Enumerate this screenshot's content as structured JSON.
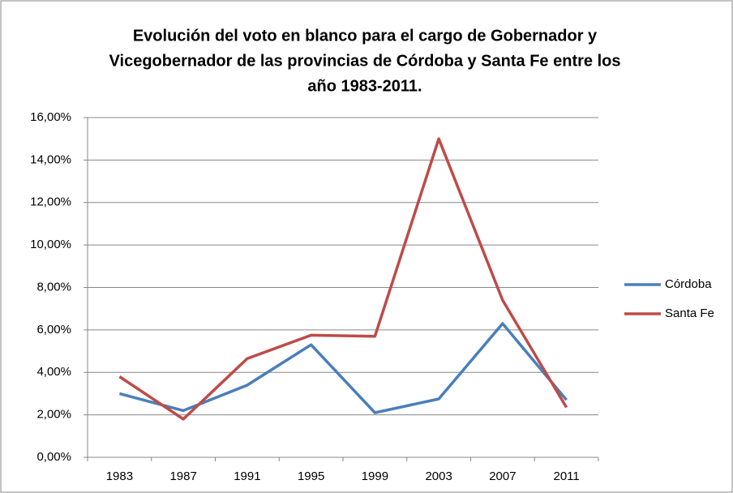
{
  "chart_data": {
    "type": "line",
    "title": [
      "Evolución del voto en blanco para el cargo de Gobernador y",
      "Vicegobernador de las provincias de Córdoba y Santa Fe entre los",
      "año 1983-2011."
    ],
    "categories": [
      "1983",
      "1987",
      "1991",
      "1995",
      "1999",
      "2003",
      "2007",
      "2011"
    ],
    "series": [
      {
        "name": "Córdoba",
        "color": "#4a7ebb",
        "values": [
          3.0,
          2.2,
          3.4,
          5.3,
          2.1,
          2.75,
          6.3,
          2.7
        ]
      },
      {
        "name": "Santa Fe",
        "color": "#be4b48",
        "values": [
          3.8,
          1.8,
          4.65,
          5.75,
          5.7,
          15.0,
          7.4,
          2.35
        ]
      }
    ],
    "ylim": [
      0,
      16
    ],
    "yticks": [
      {
        "value": 0,
        "label": "0,00%"
      },
      {
        "value": 2,
        "label": "2,00%"
      },
      {
        "value": 4,
        "label": "4,00%"
      },
      {
        "value": 6,
        "label": "6,00%"
      },
      {
        "value": 8,
        "label": "8,00%"
      },
      {
        "value": 10,
        "label": "10,00%"
      },
      {
        "value": 12,
        "label": "12,00%"
      },
      {
        "value": 14,
        "label": "14,00%"
      },
      {
        "value": 16,
        "label": "16,00%"
      }
    ],
    "grid": true,
    "legend": "right"
  }
}
